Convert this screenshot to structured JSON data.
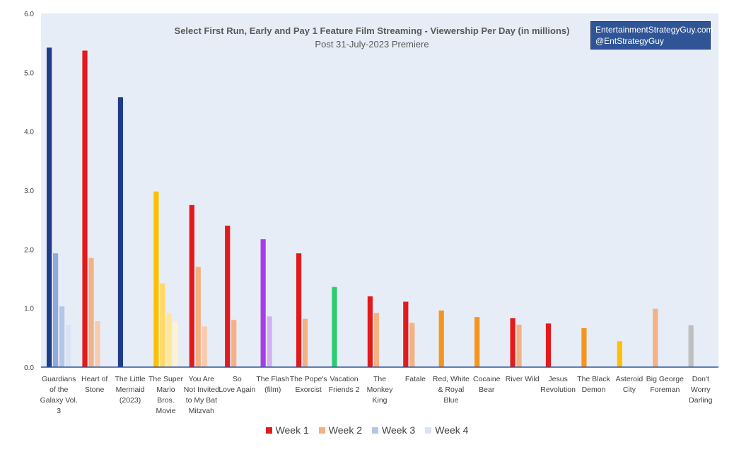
{
  "brand": {
    "line1": "EntertainmentStrategyGuy.com",
    "line2": "@EntStrategyGuy"
  },
  "chart_data": {
    "type": "bar",
    "title": "Select First Run, Early and Pay 1 Feature Film Streaming - Viewership Per Day (in millions)",
    "subtitle": "Post 31-July-2023 Premiere",
    "xlabel": "",
    "ylabel": "",
    "ylim": [
      0,
      6
    ],
    "yticks": [
      "0.0",
      "1.0",
      "2.0",
      "3.0",
      "4.0",
      "5.0",
      "6.0"
    ],
    "grid": false,
    "legend_position": "bottom",
    "plot_background": "#e7edf6",
    "categories": [
      {
        "label_lines": [
          "Guardians",
          "of the",
          "Galaxy Vol.",
          "3"
        ],
        "values": [
          5.42,
          1.93,
          1.03,
          0.72
        ],
        "colors": [
          "#1f3c88",
          "#8ea9db",
          "#b4c6e7",
          "#dae3f3"
        ]
      },
      {
        "label_lines": [
          "Heart of",
          "Stone"
        ],
        "values": [
          5.37,
          1.85,
          0.78
        ],
        "colors": [
          "#e31a1c",
          "#f4b183",
          "#f8cbad"
        ]
      },
      {
        "label_lines": [
          "The Little",
          "Mermaid",
          "(2023)"
        ],
        "values": [
          4.58
        ],
        "colors": [
          "#1f3c88"
        ]
      },
      {
        "label_lines": [
          "The Super",
          "Mario",
          "Bros.",
          "Movie"
        ],
        "values": [
          2.98,
          1.42,
          0.92,
          0.77
        ],
        "colors": [
          "#ffc000",
          "#ffd966",
          "#ffe699",
          "#fff2cc"
        ]
      },
      {
        "label_lines": [
          "You Are",
          "Not Invited",
          "to My Bat",
          "Mitzvah"
        ],
        "values": [
          2.75,
          1.7,
          0.69
        ],
        "colors": [
          "#e31a1c",
          "#f4b183",
          "#f8cbad"
        ]
      },
      {
        "label_lines": [
          "So",
          "Love Again"
        ],
        "values": [
          2.4,
          0.8
        ],
        "colors": [
          "#e31a1c",
          "#f4b183"
        ]
      },
      {
        "label_lines": [
          "The Flash",
          "(film)"
        ],
        "values": [
          2.17,
          0.86
        ],
        "colors": [
          "#a63ee8",
          "#d4b0f2"
        ]
      },
      {
        "label_lines": [
          "The Pope's",
          "Exorcist"
        ],
        "values": [
          1.93,
          0.82
        ],
        "colors": [
          "#e31a1c",
          "#f4b183"
        ]
      },
      {
        "label_lines": [
          "Vacation",
          "Friends 2"
        ],
        "values": [
          1.36
        ],
        "colors": [
          "#2ecc71"
        ]
      },
      {
        "label_lines": [
          "The",
          "Monkey",
          "King"
        ],
        "values": [
          1.2,
          0.92
        ],
        "colors": [
          "#e31a1c",
          "#f4b183"
        ]
      },
      {
        "label_lines": [
          "Fatale"
        ],
        "values": [
          1.11,
          0.75
        ],
        "colors": [
          "#e31a1c",
          "#f4b183"
        ]
      },
      {
        "label_lines": [
          "Red, White",
          "& Royal",
          "Blue"
        ],
        "values": [
          0.96
        ],
        "colors": [
          "#f7941d"
        ]
      },
      {
        "label_lines": [
          "Cocaine",
          "Bear"
        ],
        "values": [
          0.85
        ],
        "colors": [
          "#f7941d"
        ]
      },
      {
        "label_lines": [
          "River Wild"
        ],
        "values": [
          0.83,
          0.72
        ],
        "colors": [
          "#e31a1c",
          "#f4b183"
        ]
      },
      {
        "label_lines": [
          "Jesus",
          "Revolution"
        ],
        "values": [
          0.74
        ],
        "colors": [
          "#e31a1c"
        ]
      },
      {
        "label_lines": [
          "The Black",
          "Demon"
        ],
        "values": [
          0.66
        ],
        "colors": [
          "#f7941d"
        ]
      },
      {
        "label_lines": [
          "Asteroid",
          "City"
        ],
        "values": [
          0.44
        ],
        "colors": [
          "#ffc000"
        ]
      },
      {
        "label_lines": [
          "Big George",
          "Foreman"
        ],
        "values": [
          0.99
        ],
        "colors": [
          "#f4b183"
        ]
      },
      {
        "label_lines": [
          "Don't",
          "Worry",
          "Darling"
        ],
        "values": [
          0.71
        ],
        "colors": [
          "#bfbfbf"
        ]
      }
    ],
    "legend": [
      {
        "name": "Week 1",
        "color": "#e31a1c"
      },
      {
        "name": "Week 2",
        "color": "#f4b183"
      },
      {
        "name": "Week 3",
        "color": "#b4c6e7"
      },
      {
        "name": "Week 4",
        "color": "#dae3f3"
      }
    ]
  }
}
